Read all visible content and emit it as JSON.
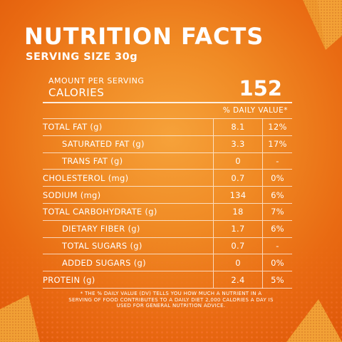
{
  "title": "NUTRITION FACTS",
  "serving_size": "SERVING SIZE 30g",
  "amount_per_serving": "AMOUNT PER SERVING",
  "calories_label": "CALORIES",
  "calories_value": "152",
  "daily_value_header": "% DAILY VALUE*",
  "rows": [
    {
      "label": "TOTAL FAT (g)",
      "amount": "8.1",
      "dv": "12%",
      "sub": false
    },
    {
      "label": "SATURATED FAT (g)",
      "amount": "3.3",
      "dv": "17%",
      "sub": true
    },
    {
      "label": "TRANS FAT (g)",
      "amount": "0",
      "dv": "-",
      "sub": true
    },
    {
      "label": "CHOLESTEROL (mg)",
      "amount": "0.7",
      "dv": "0%",
      "sub": false
    },
    {
      "label": "SODIUM (mg)",
      "amount": "134",
      "dv": "6%",
      "sub": false
    },
    {
      "label": "TOTAL CARBOHYDRATE (g)",
      "amount": "18",
      "dv": "7%",
      "sub": false
    },
    {
      "label": "DIETARY FIBER (g)",
      "amount": "1.7",
      "dv": "6%",
      "sub": true
    },
    {
      "label": "TOTAL SUGARS (g)",
      "amount": "0.7",
      "dv": "-",
      "sub": true
    },
    {
      "label": "ADDED SUGARS (g)",
      "amount": "0",
      "dv": "0%",
      "sub": true
    },
    {
      "label": "PROTEIN (g)",
      "amount": "2.4",
      "dv": "5%",
      "sub": false
    }
  ],
  "footnote": "* THE % DAILY VALUE (DV) TELLS YOU HOW MUCH A NUTRIENT IN A SERVING OF FOOD CONTRIBUTES TO A DAILY DIET 2,000 CALORIES A DAY IS USED FOR GENERAL NUTRITION ADVICE.",
  "colors": {
    "background": "#f08a24",
    "text": "#ffffff",
    "chip": "#f2a033"
  }
}
